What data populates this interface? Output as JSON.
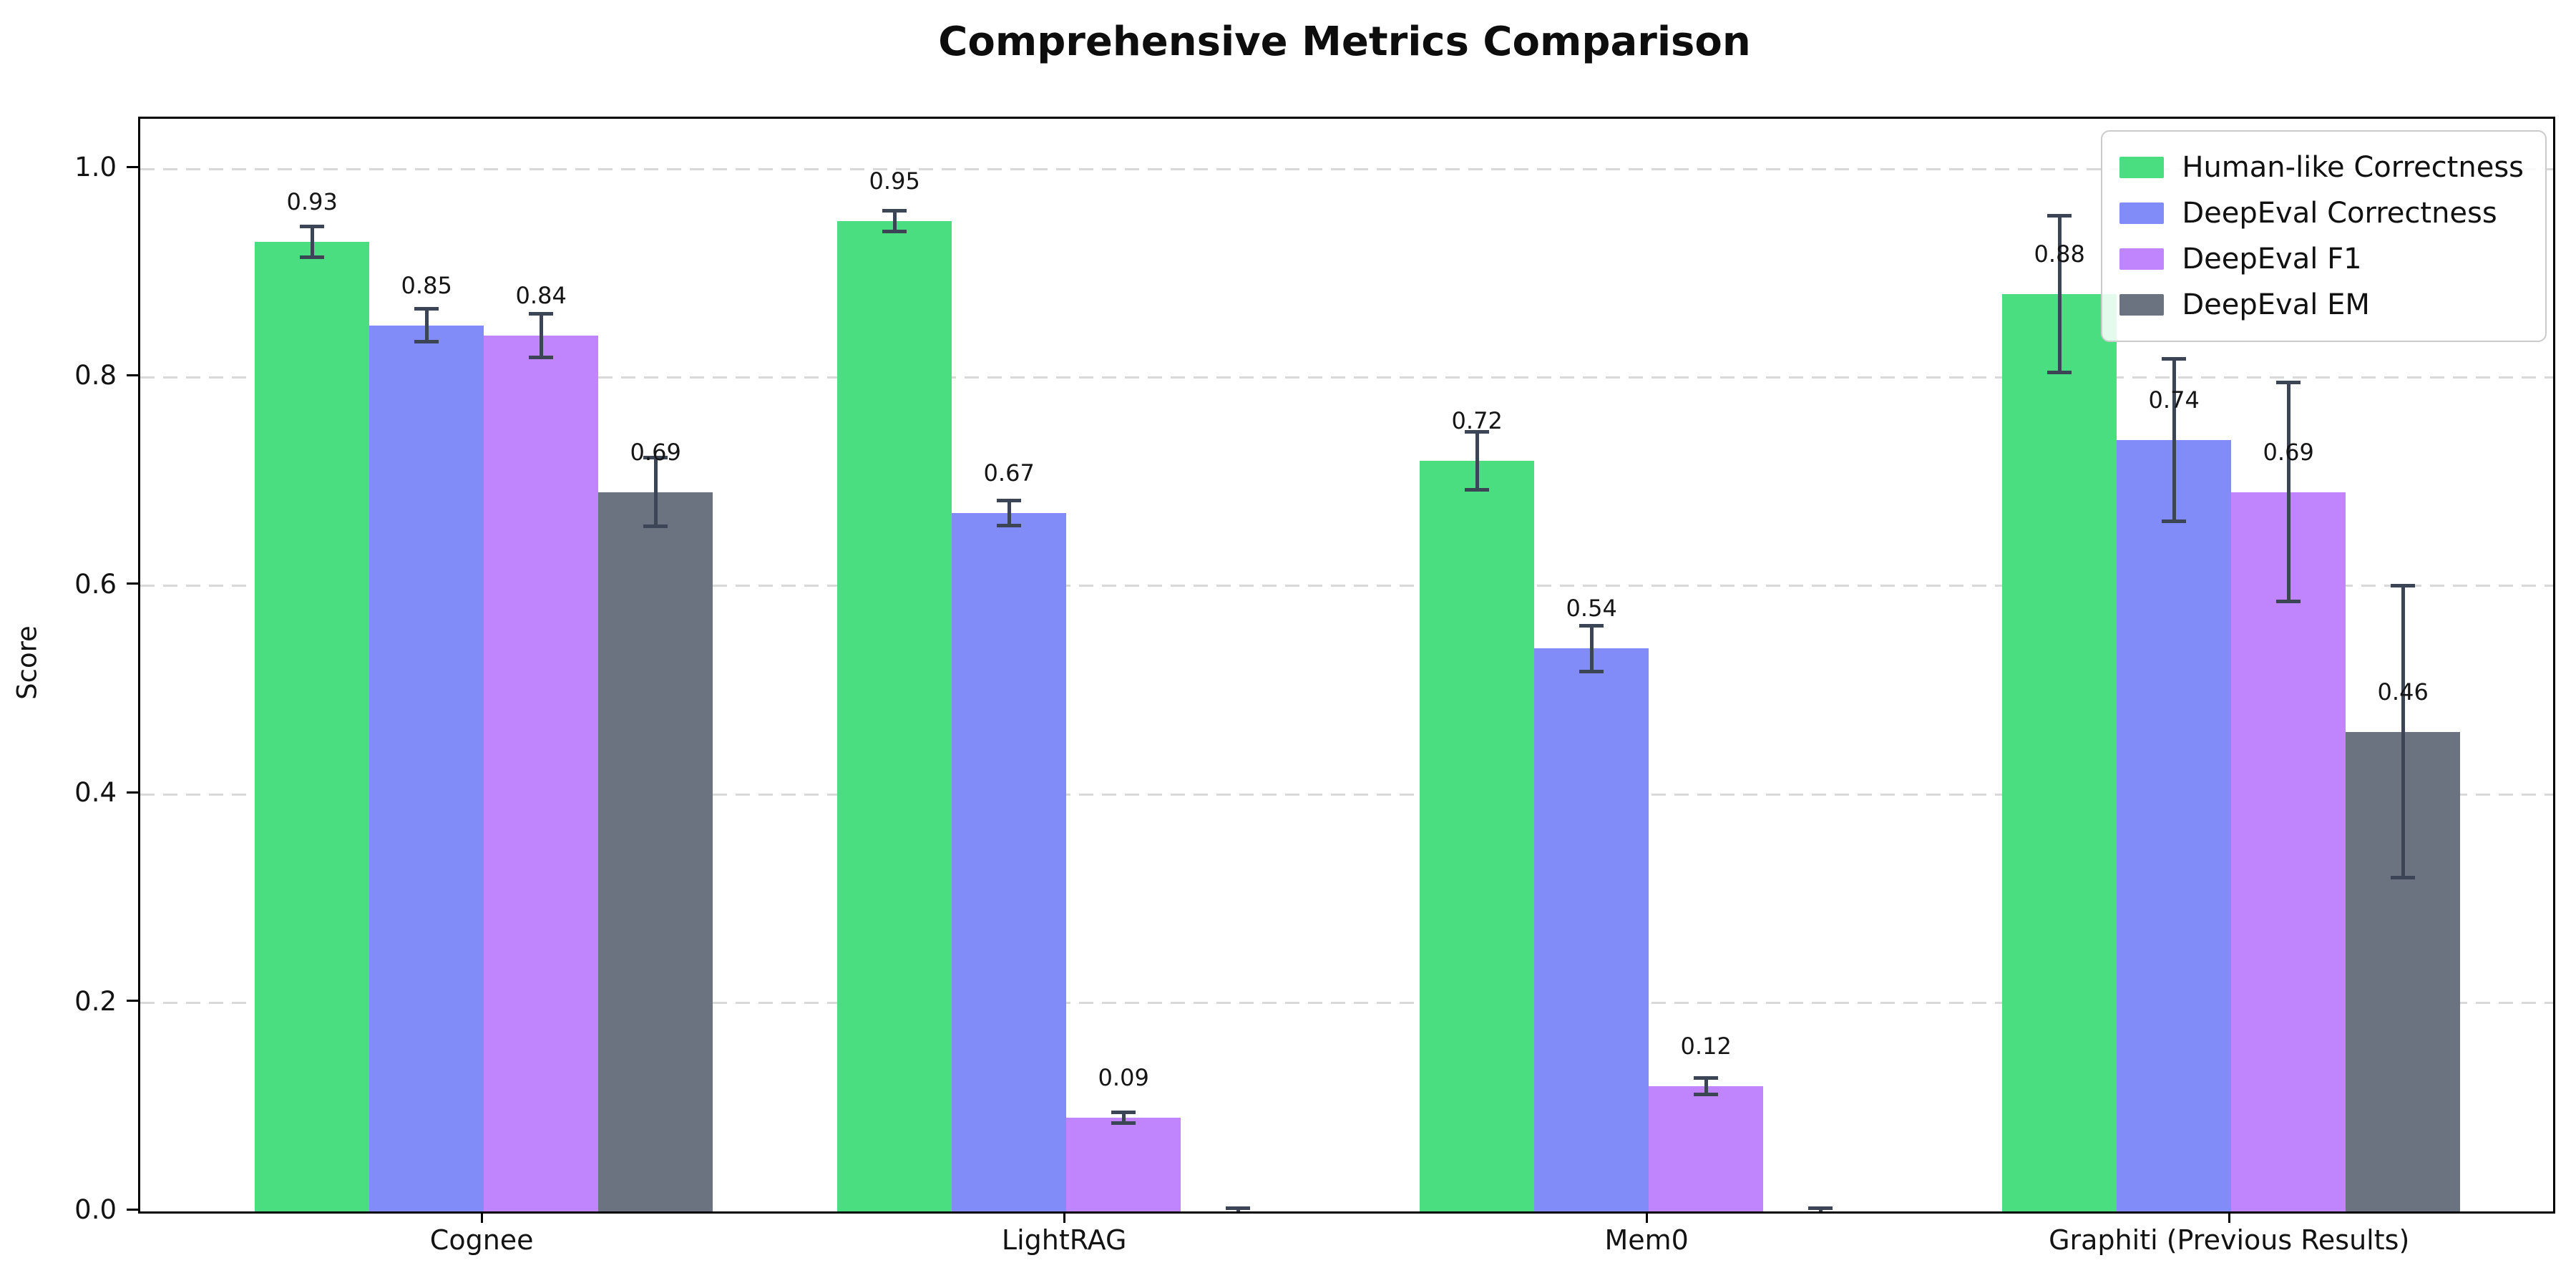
{
  "figure": {
    "title": "Comprehensive Metrics Comparison"
  },
  "chart_data": {
    "type": "bar",
    "title": "Comprehensive Metrics Comparison",
    "xlabel": "",
    "ylabel": "Score",
    "categories": [
      "Cognee",
      "LightRAG",
      "Mem0",
      "Graphiti (Previous Results)"
    ],
    "series": [
      {
        "name": "Human-like Correctness",
        "color": "#4ade80",
        "values": [
          0.93,
          0.95,
          0.72,
          0.88
        ],
        "errors": [
          0.015,
          0.01,
          0.028,
          0.075
        ],
        "labels": [
          "0.93",
          "0.95",
          "0.72",
          "0.88"
        ]
      },
      {
        "name": "DeepEval Correctness",
        "color": "#818cf8",
        "values": [
          0.85,
          0.67,
          0.54,
          0.74
        ],
        "errors": [
          0.016,
          0.012,
          0.022,
          0.078
        ],
        "labels": [
          "0.85",
          "0.67",
          "0.54",
          "0.74"
        ]
      },
      {
        "name": "DeepEval F1",
        "color": "#c084fc",
        "values": [
          0.84,
          0.09,
          0.12,
          0.69
        ],
        "errors": [
          0.021,
          0.005,
          0.008,
          0.105
        ],
        "labels": [
          "0.84",
          "0.09",
          "0.12",
          "0.69"
        ]
      },
      {
        "name": "DeepEval EM",
        "color": "#6b7280",
        "values": [
          0.69,
          0.0,
          0.0,
          0.46
        ],
        "errors": [
          0.033,
          0.003,
          0.003,
          0.14
        ],
        "labels": [
          "0.69",
          "",
          "",
          "0.46"
        ]
      }
    ],
    "yticks": [
      0.0,
      0.2,
      0.4,
      0.6,
      0.8,
      1.0
    ],
    "ytick_labels": [
      "0.0",
      "0.2",
      "0.4",
      "0.6",
      "0.8",
      "1.0"
    ],
    "ylim": [
      0,
      1.048
    ],
    "grid": "horizontal-dashed",
    "legend_position": "upper right",
    "errorbar_color": "#3b4556"
  }
}
